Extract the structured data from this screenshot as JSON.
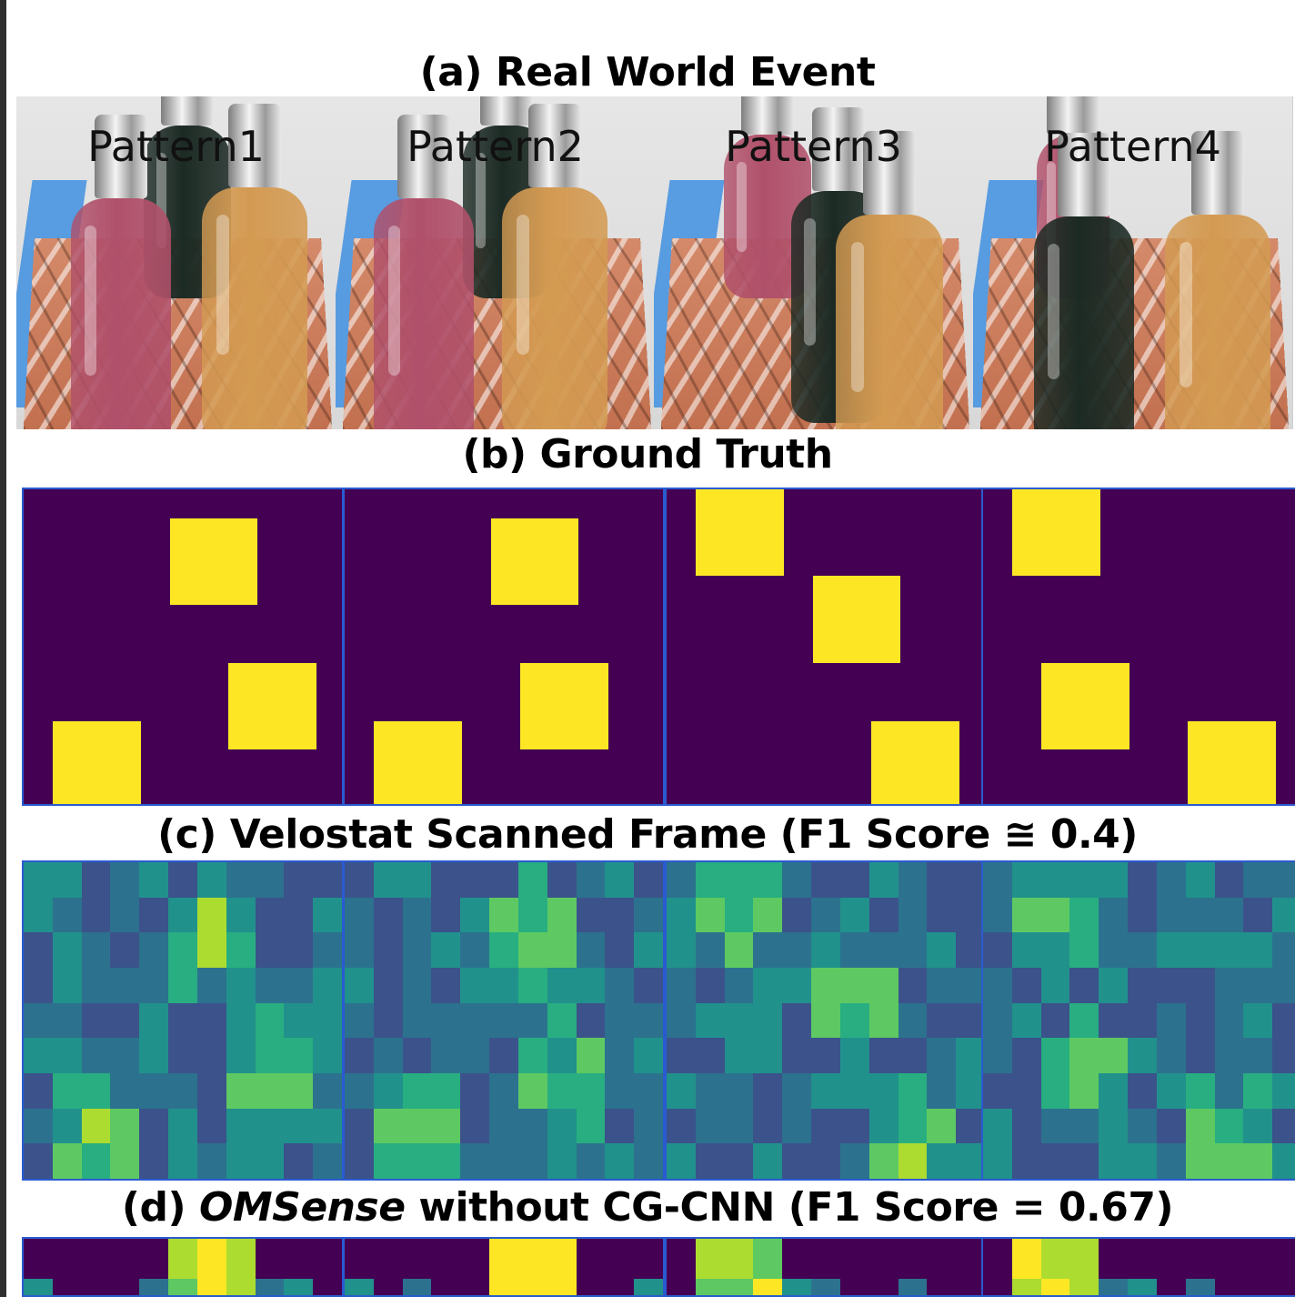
{
  "titles": {
    "a": "(a) Real World Event",
    "b": "(b) Ground Truth",
    "c": "(c)  Velostat Scanned Frame (F1 Score ≅ 0.4)",
    "d_prefix": "(d)  ",
    "d_italic": "OMSense",
    "d_suffix": " without CG-CNN (F1 Score = 0.67)"
  },
  "patterns": [
    "Pattern1",
    "Pattern2",
    "Pattern3",
    "Pattern4"
  ],
  "colors": {
    "bottle_pink": "#b0506a",
    "bottle_dark": "#1c2a24",
    "bottle_amber": "#d39a52",
    "pressure_on": "#fde725",
    "pressure_off": "#440154",
    "frame_border": "#2a5bd0"
  },
  "ground_truth_grid": {
    "cols": 11,
    "rows": 11
  },
  "ground_truth_pressed_cells": [
    [
      [
        5,
        1
      ],
      [
        7,
        6
      ],
      [
        1,
        8
      ]
    ],
    [
      [
        5,
        1
      ],
      [
        6,
        6
      ],
      [
        1,
        8
      ]
    ],
    [
      [
        1,
        0
      ],
      [
        5,
        3
      ],
      [
        7,
        8
      ]
    ],
    [
      [
        1,
        0
      ],
      [
        2,
        6
      ],
      [
        7,
        8
      ]
    ]
  ]
}
